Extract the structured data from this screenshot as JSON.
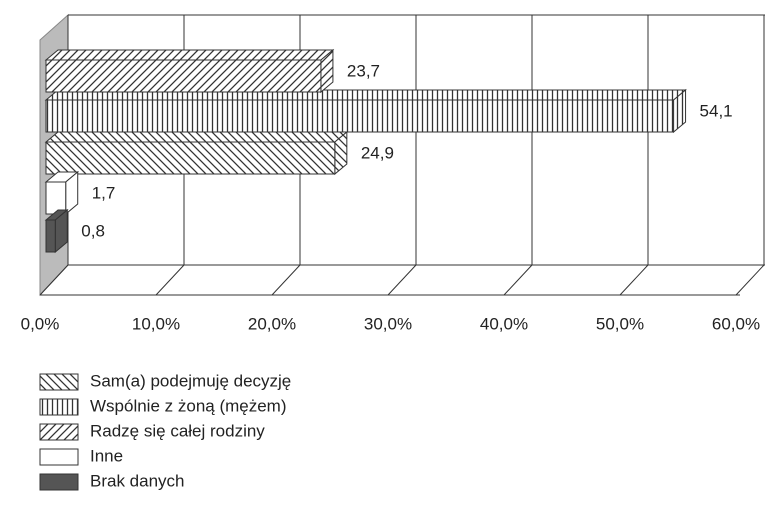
{
  "chart_data": {
    "type": "bar3d-horizontal",
    "series": [
      {
        "name": "Sam(a) podejmuję decyzję",
        "color": "#ffffff",
        "pattern": "backslash",
        "values": [
          24.9
        ],
        "value_labels": [
          "24,9"
        ]
      },
      {
        "name": "Wspólnie z żoną (mężem)",
        "color": "#ffffff",
        "pattern": "vertical",
        "values": [
          54.1
        ],
        "value_labels": [
          "54,1"
        ]
      },
      {
        "name": "Radzę się całej rodziny",
        "color": "#ffffff",
        "pattern": "slash",
        "values": [
          23.7
        ],
        "value_labels": [
          "23,7"
        ]
      },
      {
        "name": "Inne",
        "color": "#ffffff",
        "pattern": "none",
        "values": [
          1.7
        ],
        "value_labels": [
          "1,7"
        ]
      },
      {
        "name": "Brak danych",
        "color": "#555555",
        "pattern": "none",
        "values": [
          0.8
        ],
        "value_labels": [
          "0,8"
        ]
      }
    ],
    "xlim": [
      0,
      60
    ],
    "xticks": [
      {
        "value": 0,
        "label": "0,0%"
      },
      {
        "value": 10,
        "label": "10,0%"
      },
      {
        "value": 20,
        "label": "20,0%"
      },
      {
        "value": 30,
        "label": "30,0%"
      },
      {
        "value": 40,
        "label": "40,0%"
      },
      {
        "value": 50,
        "label": "50,0%"
      },
      {
        "value": 60,
        "label": "60,0%"
      }
    ],
    "grid": true
  }
}
